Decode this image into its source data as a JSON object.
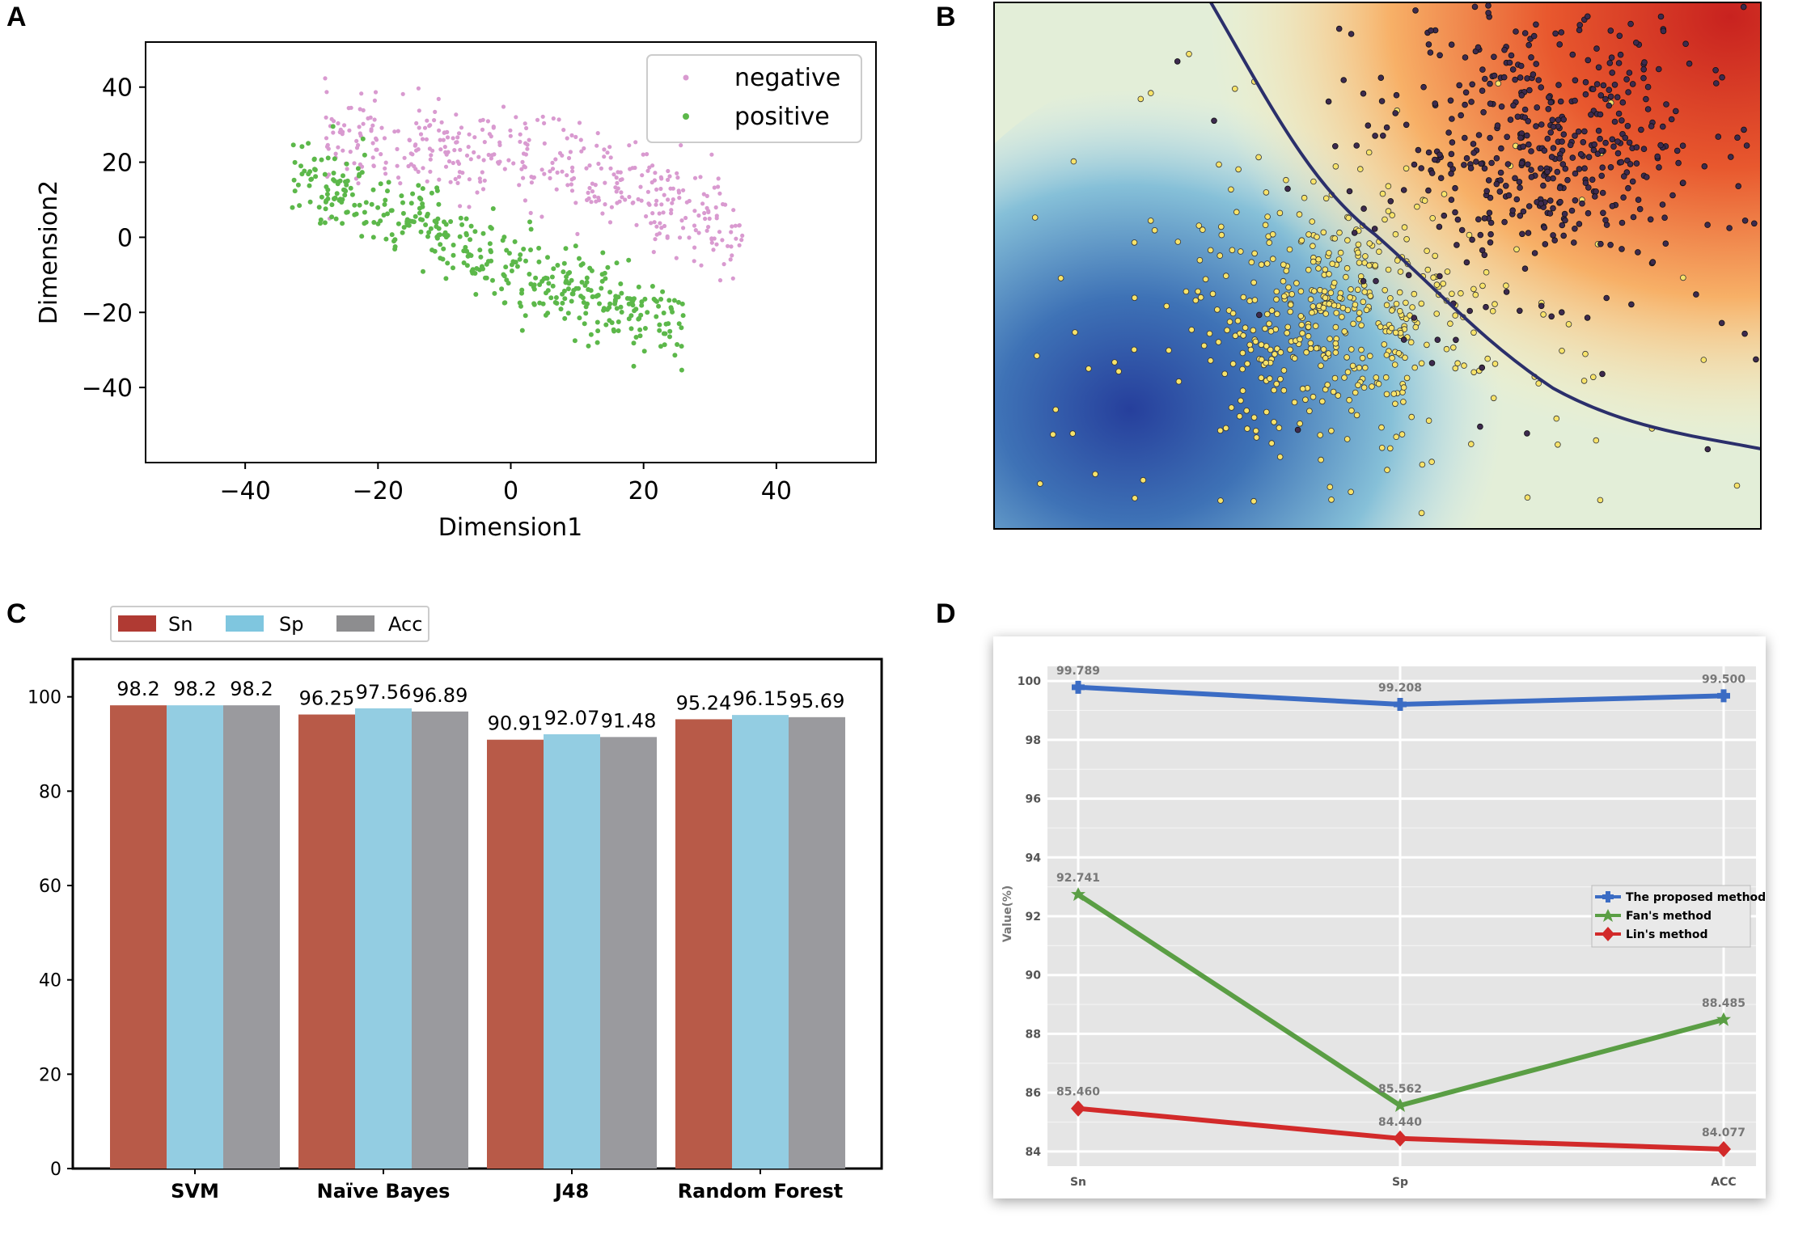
{
  "panels": {
    "a": "A",
    "b": "B",
    "c": "C",
    "d": "D"
  },
  "chart_data": [
    {
      "id": "A",
      "type": "scatter",
      "title": "",
      "xlabel": "Dimension1",
      "ylabel": "Dimension2",
      "xlim": [
        -55,
        55
      ],
      "ylim": [
        -60,
        52
      ],
      "xticks": [
        -40,
        -20,
        0,
        20,
        40
      ],
      "yticks": [
        40,
        20,
        0,
        -20,
        -40
      ],
      "tick_labels_x": [
        "−40",
        "−20",
        "0",
        "20",
        "40"
      ],
      "tick_labels_y": [
        "40",
        "20",
        "0",
        "−20",
        "−40"
      ],
      "legend": {
        "position": "top-right",
        "entries": [
          "negative",
          "positive"
        ]
      },
      "series": [
        {
          "name": "negative",
          "color": "#d99ad0",
          "n": 420,
          "cluster": "upper band from x=-28 to x=35, y from -15 to 30"
        },
        {
          "name": "positive",
          "color": "#5cb84a",
          "n": 430,
          "cluster": "lower-left band from x=-33 to x=25, y from -40 to 26"
        }
      ],
      "colors": {
        "negative": "#d99ad0",
        "positive": "#5cb84a"
      }
    },
    {
      "id": "B",
      "type": "scatter",
      "title": "",
      "xlabel": "",
      "ylabel": "",
      "xlim": [
        0,
        1
      ],
      "ylim": [
        0,
        1
      ],
      "series": [
        {
          "name": "class-yellow",
          "color": "#f7e36a",
          "center": [
            0.44,
            0.4
          ]
        },
        {
          "name": "class-dark",
          "color": "#3d2a4e",
          "center": [
            0.72,
            0.72
          ]
        }
      ],
      "background": "decision-function heatmap (blue to red)",
      "boundary_color": "#2b2f6b"
    },
    {
      "id": "C",
      "type": "bar",
      "title": "",
      "categories": [
        "SVM",
        "Naïve Bayes",
        "J48",
        "Random Forest"
      ],
      "series": [
        {
          "name": "Sn",
          "values": [
            98.2,
            96.25,
            90.91,
            95.24
          ],
          "labels": [
            "98.2",
            "96.25",
            "90.91",
            "95.24"
          ],
          "color": "#b85a48"
        },
        {
          "name": "Sp",
          "values": [
            98.2,
            97.56,
            92.07,
            96.15
          ],
          "labels": [
            "98.2",
            "97.56",
            "92.07",
            "96.15"
          ],
          "color": "#93cde2"
        },
        {
          "name": "Acc",
          "values": [
            98.2,
            96.89,
            91.48,
            95.69
          ],
          "labels": [
            "98.2",
            "96.89",
            "91.48",
            "95.69"
          ],
          "color": "#9a9a9e"
        }
      ],
      "ylim": [
        0,
        108
      ],
      "yticks": [
        0,
        20,
        40,
        60,
        80,
        100
      ],
      "xlabel": "",
      "ylabel": "",
      "legend": {
        "position": "top-left-outside",
        "entries": [
          "Sn",
          "Sp",
          "Acc"
        ]
      }
    },
    {
      "id": "D",
      "type": "line",
      "title": "",
      "categories": [
        "Sn",
        "Sp",
        "ACC"
      ],
      "ylabel": "Value(%)",
      "xlabel": "",
      "ylim": [
        83.5,
        100.5
      ],
      "yticks": [
        84,
        86,
        88,
        90,
        92,
        94,
        96,
        98,
        100
      ],
      "series": [
        {
          "name": "The proposed method",
          "values": [
            99.789,
            99.208,
            99.5
          ],
          "labels": [
            "99.789",
            "99.208",
            "99.500"
          ],
          "color": "#3b6cc4",
          "marker": "plus"
        },
        {
          "name": "Fan's method",
          "values": [
            92.741,
            85.562,
            88.485
          ],
          "labels": [
            "92.741",
            "85.562",
            "88.485"
          ],
          "color": "#5a9e44",
          "marker": "star"
        },
        {
          "name": "Lin's method",
          "values": [
            85.46,
            84.44,
            84.077
          ],
          "labels": [
            "85.460",
            "84.440",
            "84.077"
          ],
          "color": "#d22a2a",
          "marker": "diamond"
        }
      ],
      "legend": {
        "position": "right-middle",
        "entries": [
          "The proposed method",
          "Fan's method",
          "Lin's method"
        ]
      }
    }
  ]
}
